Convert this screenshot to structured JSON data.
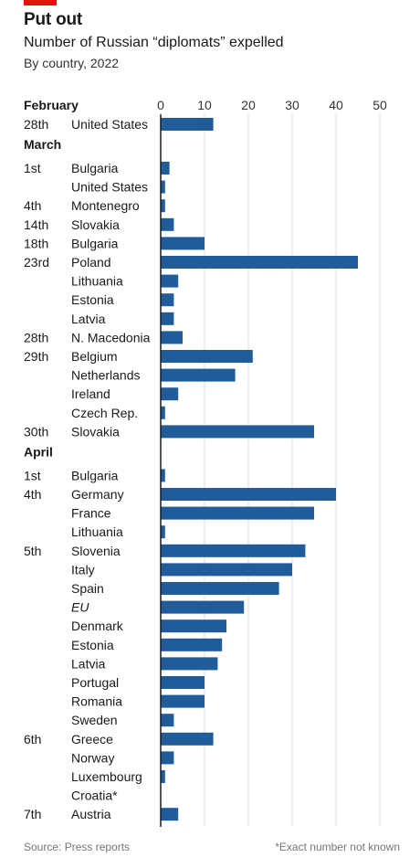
{
  "header": {
    "title": "Put out",
    "subtitle": "Number of Russian “diplomats” expelled",
    "note": "By country, 2022"
  },
  "footer": {
    "source": "Source: Press reports",
    "footnote": "*Exact number not known"
  },
  "colors": {
    "bar": "#1f5c99",
    "accent": "#e3120b",
    "grid": "#d7dee5"
  },
  "chart_data": {
    "type": "bar",
    "orientation": "horizontal",
    "xlim": [
      0,
      50
    ],
    "xticks": [
      0,
      10,
      20,
      30,
      40,
      50
    ],
    "grid": true,
    "groups": [
      {
        "month": "February",
        "rows": [
          {
            "date": "28th",
            "country": "United States",
            "value": 12
          }
        ]
      },
      {
        "month": "March",
        "rows": [
          {
            "date": "1st",
            "country": "Bulgaria",
            "value": 2
          },
          {
            "date": "",
            "country": "United States",
            "value": 1
          },
          {
            "date": "4th",
            "country": "Montenegro",
            "value": 1
          },
          {
            "date": "14th",
            "country": "Slovakia",
            "value": 3
          },
          {
            "date": "18th",
            "country": "Bulgaria",
            "value": 10
          },
          {
            "date": "23rd",
            "country": "Poland",
            "value": 45
          },
          {
            "date": "",
            "country": "Lithuania",
            "value": 4
          },
          {
            "date": "",
            "country": "Estonia",
            "value": 3
          },
          {
            "date": "",
            "country": "Latvia",
            "value": 3
          },
          {
            "date": "28th",
            "country": "N. Macedonia",
            "value": 5
          },
          {
            "date": "29th",
            "country": "Belgium",
            "value": 21
          },
          {
            "date": "",
            "country": "Netherlands",
            "value": 17
          },
          {
            "date": "",
            "country": "Ireland",
            "value": 4
          },
          {
            "date": "",
            "country": "Czech Rep.",
            "value": 1
          },
          {
            "date": "30th",
            "country": "Slovakia",
            "value": 35
          }
        ]
      },
      {
        "month": "April",
        "rows": [
          {
            "date": "1st",
            "country": "Bulgaria",
            "value": 1
          },
          {
            "date": "4th",
            "country": "Germany",
            "value": 40
          },
          {
            "date": "",
            "country": "France",
            "value": 35
          },
          {
            "date": "",
            "country": "Lithuania",
            "value": 1
          },
          {
            "date": "5th",
            "country": "Slovenia",
            "value": 33
          },
          {
            "date": "",
            "country": "Italy",
            "value": 30
          },
          {
            "date": "",
            "country": "Spain",
            "value": 27
          },
          {
            "date": "",
            "country": "EU",
            "value": 19,
            "italic": true
          },
          {
            "date": "",
            "country": "Denmark",
            "value": 15
          },
          {
            "date": "",
            "country": "Estonia",
            "value": 14
          },
          {
            "date": "",
            "country": "Latvia",
            "value": 13
          },
          {
            "date": "",
            "country": "Portugal",
            "value": 10
          },
          {
            "date": "",
            "country": "Romania",
            "value": 10
          },
          {
            "date": "",
            "country": "Sweden",
            "value": 3
          },
          {
            "date": "6th",
            "country": "Greece",
            "value": 12
          },
          {
            "date": "",
            "country": "Norway",
            "value": 3
          },
          {
            "date": "",
            "country": "Luxembourg",
            "value": 1
          },
          {
            "date": "",
            "country": "Croatia*",
            "value": null
          },
          {
            "date": "7th",
            "country": "Austria",
            "value": 4
          }
        ]
      }
    ]
  }
}
